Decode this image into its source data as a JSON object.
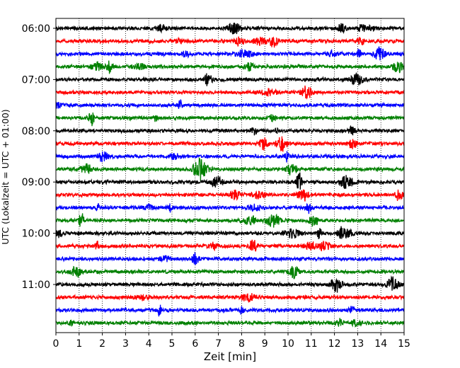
{
  "chart_data": {
    "type": "line",
    "title": "",
    "xlabel": "Zeit  [min]",
    "ylabel": "UTC (Lokalzeit = UTC + 01:00)",
    "xlim": [
      0,
      15
    ],
    "x_ticks": [
      "0",
      "1",
      "2",
      "3",
      "4",
      "5",
      "6",
      "7",
      "8",
      "9",
      "10",
      "11",
      "12",
      "13",
      "14",
      "15"
    ],
    "y_ticks": [
      "06:00",
      "07:00",
      "08:00",
      "09:00",
      "10:00",
      "11:00"
    ],
    "x_grid": true,
    "x_grid_style": "dotted",
    "line_colors": [
      "#000000",
      "#ff0000",
      "#0000ff",
      "#008000"
    ],
    "row_interval_min": 15,
    "rows": [
      {
        "start": "06:00",
        "color": "#000000"
      },
      {
        "start": "06:15",
        "color": "#ff0000"
      },
      {
        "start": "06:30",
        "color": "#0000ff"
      },
      {
        "start": "06:45",
        "color": "#008000"
      },
      {
        "start": "07:00",
        "color": "#000000"
      },
      {
        "start": "07:15",
        "color": "#ff0000"
      },
      {
        "start": "07:30",
        "color": "#0000ff"
      },
      {
        "start": "07:45",
        "color": "#008000"
      },
      {
        "start": "08:00",
        "color": "#000000"
      },
      {
        "start": "08:15",
        "color": "#ff0000"
      },
      {
        "start": "08:30",
        "color": "#0000ff"
      },
      {
        "start": "08:45",
        "color": "#008000"
      },
      {
        "start": "09:00",
        "color": "#000000"
      },
      {
        "start": "09:15",
        "color": "#ff0000"
      },
      {
        "start": "09:30",
        "color": "#0000ff"
      },
      {
        "start": "09:45",
        "color": "#008000"
      },
      {
        "start": "10:00",
        "color": "#000000"
      },
      {
        "start": "10:15",
        "color": "#ff0000"
      },
      {
        "start": "10:30",
        "color": "#0000ff"
      },
      {
        "start": "10:45",
        "color": "#008000"
      },
      {
        "start": "11:00",
        "color": "#000000"
      },
      {
        "start": "11:15",
        "color": "#ff0000"
      },
      {
        "start": "11:30",
        "color": "#0000ff"
      },
      {
        "start": "11:45",
        "color": "#008000"
      }
    ]
  }
}
